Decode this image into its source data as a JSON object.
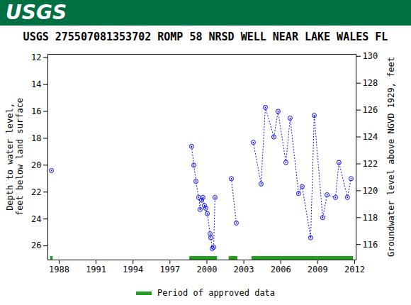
{
  "header": "USGS",
  "chart_data": {
    "type": "line",
    "title": "USGS 275507081353702 ROMP 58 NRSD WELL NEAR LAKE WALES FL",
    "y_label": "Depth to water level, feet below land surface",
    "y2_label": "Groundwater level above NGVD 1929, feet",
    "x": [
      1987.37,
      1993.0,
      1998.76,
      1998.94,
      1999.11,
      1999.34,
      1999.45,
      1999.57,
      1999.68,
      1999.8,
      1999.91,
      2000.03,
      2000.26,
      2000.32,
      2000.43,
      2000.55,
      2000.66,
      2001.3,
      2001.99,
      2002.39,
      2003.1,
      2003.77,
      2004.4,
      2004.75,
      2005.44,
      2005.78,
      2006.42,
      2006.76,
      2007.45,
      2007.74,
      2008.43,
      2008.72,
      2009.41,
      2009.76,
      2010.45,
      2010.73,
      2011.42,
      2011.71
    ],
    "series": [
      {
        "color": "#0000ff",
        "marker": "circle",
        "line_style": "dotted",
        "values": [
          20.4,
          null,
          18.6,
          20.0,
          21.2,
          22.4,
          23.3,
          22.6,
          22.4,
          23.0,
          23.2,
          23.6,
          25.1,
          25.4,
          26.2,
          26.1,
          22.4,
          null,
          21.0,
          24.3,
          null,
          18.3,
          21.4,
          15.7,
          17.9,
          16.0,
          19.8,
          16.5,
          22.1,
          21.6,
          25.4,
          16.3,
          23.9,
          22.2,
          22.4,
          19.8,
          22.4,
          21.0
        ]
      }
    ],
    "approved": {
      "label": "Period of approved data",
      "color": "#22a022",
      "periods": [
        [
          1987.3,
          1987.5
        ],
        [
          1998.6,
          2000.85
        ],
        [
          2001.8,
          2002.5
        ],
        [
          2003.65,
          2011.9
        ]
      ]
    },
    "legend": "bottom",
    "xlim": [
      1987.08,
      2012.12
    ],
    "xticks": [
      1988,
      1991,
      1994,
      1997,
      2000,
      2003,
      2006,
      2009,
      2012
    ],
    "ylim": [
      27.05,
      11.75
    ],
    "yticks": [
      12,
      14,
      16,
      18,
      20,
      22,
      24,
      26
    ],
    "y2lim": [
      114.85,
      130.15
    ],
    "y2ticks": [
      116,
      118,
      120,
      122,
      124,
      126,
      128,
      130
    ],
    "grid": false
  }
}
